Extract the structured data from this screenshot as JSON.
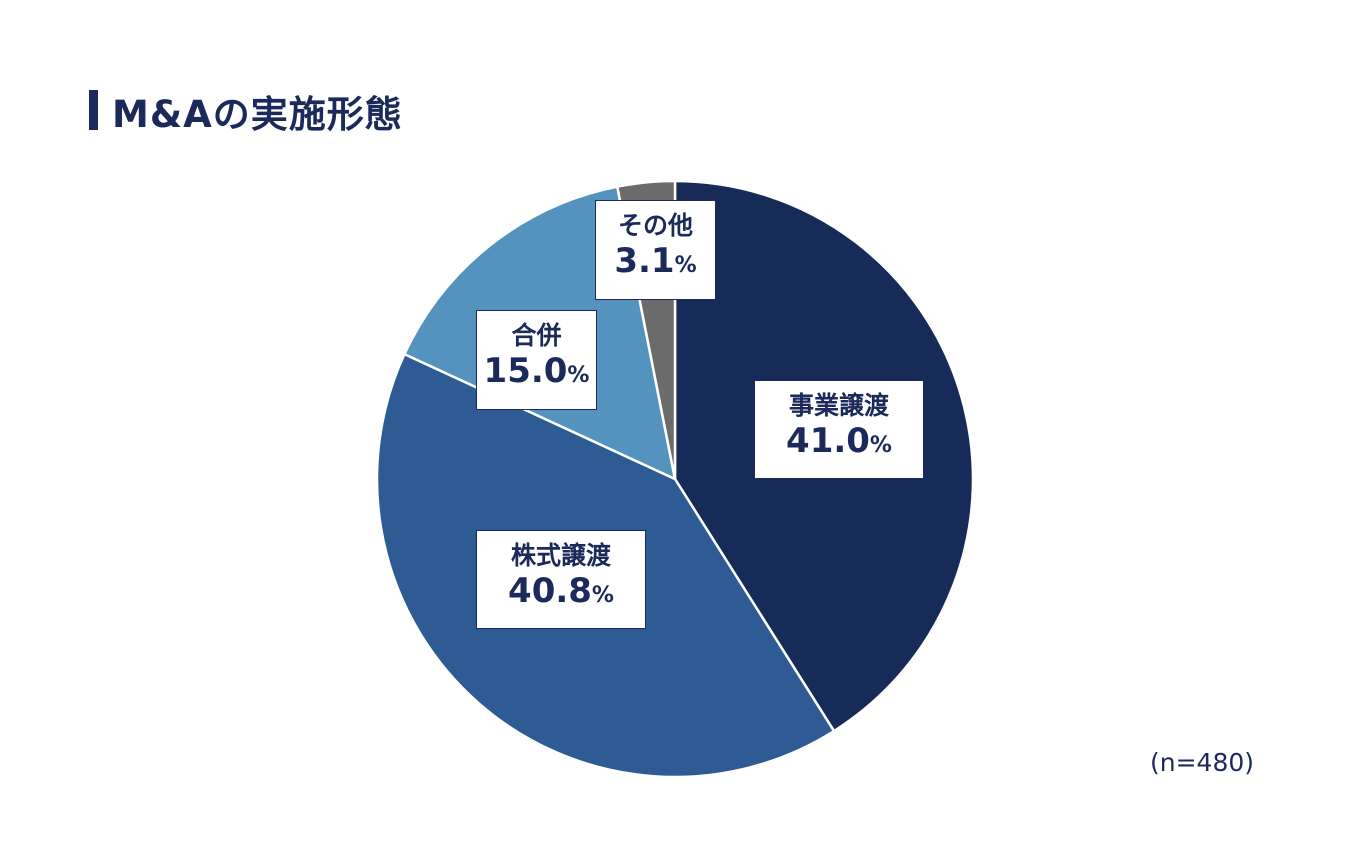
{
  "title": "M&Aの実施形態",
  "note": "(n=480)",
  "percent_unit": "%",
  "chart_data": {
    "type": "pie",
    "title": "M&Aの実施形態",
    "slices": [
      {
        "label": "事業譲渡",
        "value": 41.0,
        "value_text": "41.0",
        "color": "#172b58"
      },
      {
        "label": "株式譲渡",
        "value": 40.8,
        "value_text": "40.8",
        "color": "#2e5b93"
      },
      {
        "label": "合併",
        "value": 15.0,
        "value_text": "15.0",
        "color": "#5593bf"
      },
      {
        "label": "その他",
        "value": 3.1,
        "value_text": "3.1",
        "color": "#6b6b6b"
      }
    ],
    "start": "12 o'clock",
    "direction": "clockwise"
  }
}
